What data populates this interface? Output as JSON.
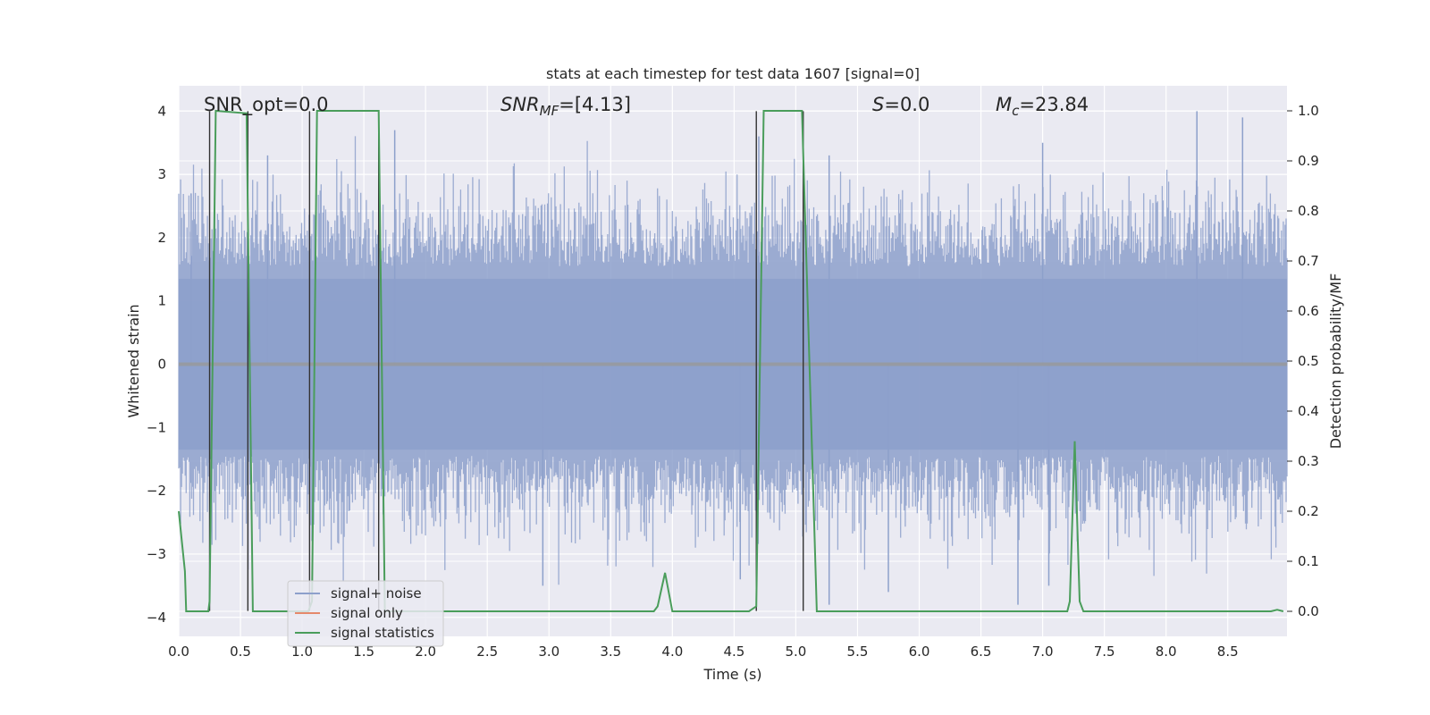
{
  "chart_data": {
    "type": "line",
    "title": "stats at each timestep for test data 1607 [signal=0]",
    "xlabel": "Time (s)",
    "ylabel": "Whitened strain",
    "y2label": "Detection probability/MF",
    "xlim": [
      0.0,
      8.98
    ],
    "ylim": [
      -4.3,
      4.4
    ],
    "y2lim": [
      -0.05,
      1.05
    ],
    "xticks": [
      "0.0",
      "0.5",
      "1.0",
      "1.5",
      "2.0",
      "2.5",
      "3.0",
      "3.5",
      "4.0",
      "4.5",
      "5.0",
      "5.5",
      "6.0",
      "6.5",
      "7.0",
      "7.5",
      "8.0",
      "8.5"
    ],
    "yticks": [
      "4",
      "3",
      "2",
      "1",
      "0",
      "−1",
      "−2",
      "−3",
      "−4"
    ],
    "y2ticks": [
      "1.0",
      "0.9",
      "0.8",
      "0.7",
      "0.6",
      "0.5",
      "0.4",
      "0.3",
      "0.2",
      "0.1",
      "0.0"
    ],
    "grid": true,
    "legend_position": "lower-left",
    "annotations": {
      "snr_opt": "SNR_opt=0.0",
      "snr_mf_main": "SNR",
      "snr_mf_sub": "MF",
      "snr_mf_rest": "=[4.13]",
      "s_main": "S",
      "s_rest": "=0.0",
      "mc_main": "M",
      "mc_sub": "c",
      "mc_rest": "=23.84"
    },
    "series": [
      {
        "name": "signal+ noise",
        "color": "#8da0cb",
        "style": "noise band",
        "x_range": [
          0.0,
          8.98
        ],
        "approx_range": [
          -3.6,
          4.0
        ],
        "note_peaks": [
          [
            0.1,
            2.7
          ],
          [
            0.72,
            3.3
          ],
          [
            1.75,
            3.7
          ],
          [
            4.7,
            3.6
          ],
          [
            5.27,
            3.3
          ],
          [
            7.0,
            3.5
          ],
          [
            8.25,
            4.0
          ],
          [
            8.62,
            3.9
          ]
        ],
        "note_troughs": [
          [
            2.95,
            -3.5
          ],
          [
            4.55,
            -3.4
          ],
          [
            5.27,
            -3.8
          ],
          [
            5.75,
            -3.6
          ],
          [
            6.8,
            -3.8
          ],
          [
            7.05,
            -3.5
          ]
        ]
      },
      {
        "name": "signal only",
        "color": "#e5896b",
        "values": [
          [
            0.0,
            0.0
          ],
          [
            8.98,
            0.0
          ]
        ]
      },
      {
        "name": "signal statistics",
        "color": "#4a9d5b",
        "axis": "right",
        "points": [
          [
            0.0,
            0.2
          ],
          [
            0.05,
            0.08
          ],
          [
            0.06,
            0.0
          ],
          [
            0.24,
            0.0
          ],
          [
            0.25,
            0.02
          ],
          [
            0.3,
            1.0
          ],
          [
            0.55,
            0.995
          ],
          [
            0.6,
            0.0
          ],
          [
            1.05,
            0.0
          ],
          [
            1.08,
            0.02
          ],
          [
            1.12,
            1.0
          ],
          [
            1.62,
            1.0
          ],
          [
            1.67,
            0.0
          ],
          [
            3.85,
            0.0
          ],
          [
            3.88,
            0.01
          ],
          [
            3.94,
            0.077
          ],
          [
            4.0,
            0.0
          ],
          [
            4.62,
            0.0
          ],
          [
            4.68,
            0.01
          ],
          [
            4.74,
            1.0
          ],
          [
            5.05,
            1.0
          ],
          [
            5.17,
            0.0
          ],
          [
            7.2,
            0.0
          ],
          [
            7.22,
            0.02
          ],
          [
            7.26,
            0.34
          ],
          [
            7.3,
            0.02
          ],
          [
            7.33,
            0.0
          ],
          [
            8.85,
            0.0
          ],
          [
            8.9,
            0.003
          ],
          [
            8.95,
            0.0
          ]
        ]
      }
    ],
    "vertical_markers": [
      {
        "x": 0.25,
        "ylo": -3.9,
        "yhi": 4.0
      },
      {
        "x": 0.56,
        "ylo": -3.9,
        "yhi": 4.0
      },
      {
        "x": 1.06,
        "ylo": -3.9,
        "yhi": 4.0
      },
      {
        "x": 1.62,
        "ylo": -3.9,
        "yhi": 4.0
      },
      {
        "x": 4.68,
        "ylo": -3.9,
        "yhi": 4.0
      },
      {
        "x": 5.06,
        "ylo": -3.9,
        "yhi": 4.0
      }
    ]
  },
  "colors": {
    "background": "#eaeaf2",
    "grid": "#ffffff",
    "noise": "#8da0cb",
    "signal_only": "#e5896b",
    "statistics": "#4a9d5b",
    "marker": "#333333"
  }
}
